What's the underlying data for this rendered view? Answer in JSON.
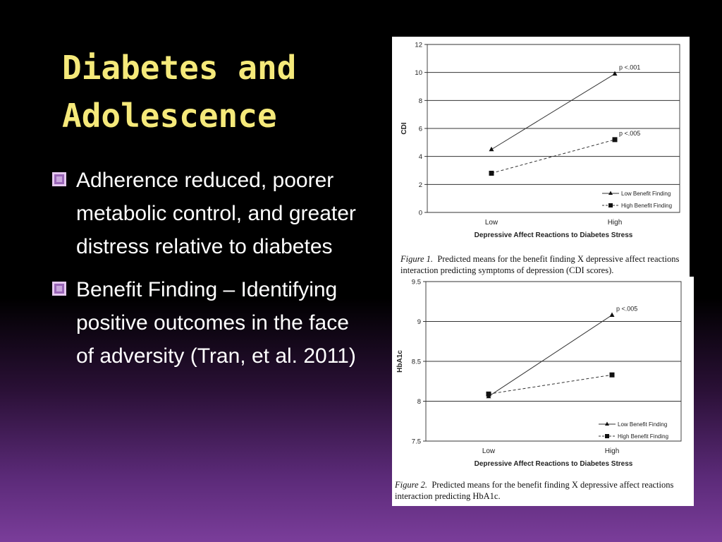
{
  "slide": {
    "title_line1": "Diabetes and",
    "title_line2": "Adolescence",
    "bullets": [
      "Adherence reduced, poorer metabolic control, and greater distress relative to diabetes",
      "Benefit Finding – Identifying positive outcomes in the face of adversity (Tran, et al. 2011)"
    ]
  },
  "chart_data": [
    {
      "type": "line",
      "categories": [
        "Low",
        "High"
      ],
      "series": [
        {
          "name": "Low Benefit Finding",
          "values": [
            4.5,
            9.9
          ],
          "marker": "triangle",
          "style": "solid"
        },
        {
          "name": "High Benefit Finding",
          "values": [
            2.8,
            5.2
          ],
          "marker": "square",
          "style": "dashed"
        }
      ],
      "xlabel": "Depressive Affect Reactions to Diabetes Stress",
      "ylabel": "CDI",
      "ylim": [
        0,
        12
      ],
      "yticks": [
        "0",
        "2",
        "4",
        "6",
        "8",
        "10",
        "12"
      ],
      "annotations": [
        "p <.001",
        "p <.005"
      ],
      "legend_position": "bottom-right",
      "grid": true,
      "caption_label": "Figure 1.",
      "caption_text": "Predicted means for the benefit finding X depressive affect reactions interaction predicting symptoms of depression (CDI scores)."
    },
    {
      "type": "line",
      "categories": [
        "Low",
        "High"
      ],
      "series": [
        {
          "name": "Low Benefit Finding",
          "values": [
            8.06,
            9.08
          ],
          "marker": "triangle",
          "style": "solid"
        },
        {
          "name": "High Benefit Finding",
          "values": [
            8.09,
            8.33
          ],
          "marker": "square",
          "style": "dashed"
        }
      ],
      "xlabel": "Depressive Affect Reactions to Diabetes Stress",
      "ylabel": "HbA1c",
      "ylim": [
        7.5,
        9.5
      ],
      "yticks": [
        "7.5",
        "8",
        "8.5",
        "9",
        "9.5"
      ],
      "annotations": [
        "p <.005"
      ],
      "legend_position": "bottom-right",
      "grid": true,
      "caption_label": "Figure 2.",
      "caption_text": "Predicted means for the benefit finding X depressive affect reactions interaction predicting HbA1c."
    }
  ]
}
